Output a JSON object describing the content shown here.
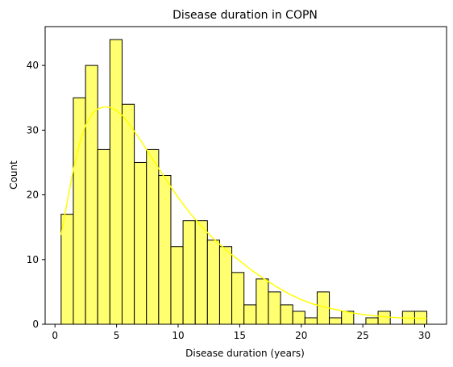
{
  "chart_data": {
    "type": "bar",
    "subtype": "histogram",
    "title": "Disease duration in COPN",
    "xlabel": "Disease duration (years)",
    "ylabel": "Count",
    "xlim": [
      -0.8,
      31.8
    ],
    "ylim": [
      0,
      46
    ],
    "xticks": [
      0,
      5,
      10,
      15,
      20,
      25,
      30
    ],
    "yticks": [
      0,
      10,
      20,
      30,
      40
    ],
    "bin_start": 0.5,
    "bin_width": 0.99,
    "counts": [
      17,
      35,
      40,
      27,
      44,
      34,
      25,
      27,
      23,
      12,
      16,
      16,
      13,
      12,
      8,
      3,
      7,
      5,
      3,
      2,
      1,
      5,
      1,
      2,
      0,
      1,
      2,
      0,
      2,
      2
    ],
    "kde_curve": {
      "x": [
        0.5,
        1,
        1.5,
        2,
        2.5,
        3,
        3.5,
        4,
        4.5,
        5,
        5.5,
        6,
        7,
        8,
        9,
        10,
        11,
        12,
        13,
        14,
        15,
        16,
        17,
        18,
        19,
        20,
        21,
        22,
        23,
        24,
        25,
        26,
        27,
        28,
        29,
        30.2
      ],
      "y": [
        13.8,
        19,
        24,
        28,
        30.8,
        32.5,
        33.3,
        33.6,
        33.5,
        33,
        32.2,
        31,
        28.3,
        25.3,
        22.4,
        19.6,
        17.1,
        14.9,
        13,
        11.3,
        9.8,
        8.3,
        7,
        5.8,
        4.7,
        3.8,
        3.1,
        2.6,
        2.2,
        1.8,
        1.5,
        1.3,
        1.1,
        1,
        0.95,
        0.9
      ]
    },
    "grid": false,
    "colors": {
      "bar_fill": "#ffff70",
      "bar_edge": "#000000",
      "kde_line": "#ffff00"
    }
  }
}
